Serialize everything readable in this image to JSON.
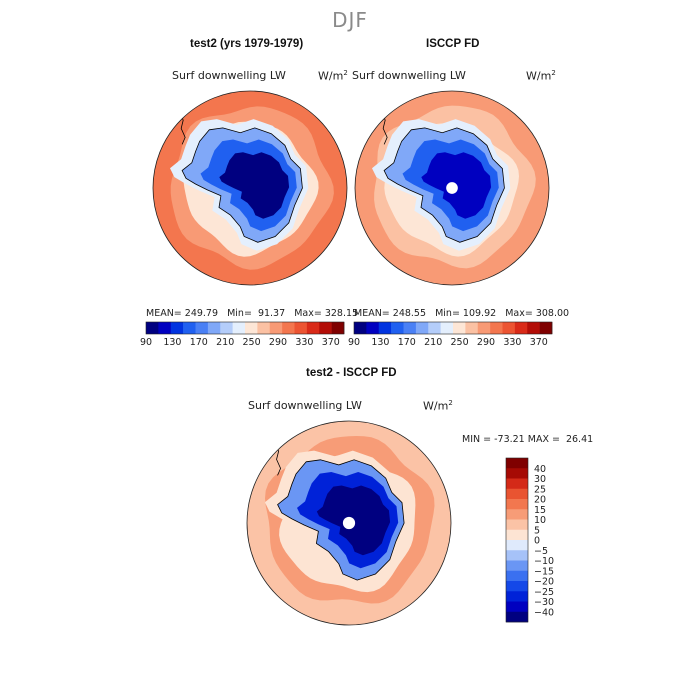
{
  "figure_title": "DJF",
  "chart_data": [
    {
      "type": "heatmap",
      "title": "test2 (yrs 1979-1979)",
      "variable": "Surf downwelling LW",
      "units": "W/m",
      "units_exp": "2",
      "projection": "south polar stereographic",
      "stats": {
        "mean": "249.79",
        "min": "91.37",
        "max": "328.15"
      },
      "stats_text": "MEAN= 249.79   Min=  91.37   Max= 328.15",
      "levels": [
        90,
        110,
        130,
        150,
        170,
        190,
        210,
        230,
        250,
        270,
        290,
        310,
        330,
        350,
        370,
        390
      ],
      "tick_labels": [
        "90",
        "130",
        "170",
        "210",
        "250",
        "290",
        "330",
        "370"
      ],
      "colors": [
        "#000080",
        "#0000c0",
        "#0033e0",
        "#2060f0",
        "#4a80f5",
        "#80a8f8",
        "#b4cdfa",
        "#e4effd",
        "#fde6d6",
        "#fbc1a3",
        "#f89a75",
        "#f3764e",
        "#ec5432",
        "#d92a18",
        "#b30d07",
        "#7f0000"
      ],
      "region_values": {
        "ocean_far": 322,
        "ocean_mid": 300,
        "ocean_ice": 268,
        "ice_shelf": 245,
        "coast": 205,
        "plateau_edge": 150,
        "plateau": 100
      }
    },
    {
      "type": "heatmap",
      "title": "ISCCP FD",
      "variable": "Surf downwelling LW",
      "units": "W/m",
      "units_exp": "2",
      "projection": "south polar stereographic",
      "stats": {
        "mean": "248.55",
        "min": "109.92",
        "max": "308.00"
      },
      "stats_text": "MEAN= 248.55   Min= 109.92   Max= 308.00",
      "levels": [
        90,
        110,
        130,
        150,
        170,
        190,
        210,
        230,
        250,
        270,
        290,
        310,
        330,
        350,
        370,
        390
      ],
      "tick_labels": [
        "90",
        "130",
        "170",
        "210",
        "250",
        "290",
        "330",
        "370"
      ],
      "colors": [
        "#000080",
        "#0000c0",
        "#0033e0",
        "#2060f0",
        "#4a80f5",
        "#80a8f8",
        "#b4cdfa",
        "#e4effd",
        "#fde6d6",
        "#fbc1a3",
        "#f89a75",
        "#f3764e",
        "#ec5432",
        "#d92a18",
        "#b30d07",
        "#7f0000"
      ],
      "region_values": {
        "ocean_far": 300,
        "ocean_mid": 280,
        "ocean_ice": 262,
        "ice_shelf": 235,
        "coast": 195,
        "plateau_edge": 150,
        "plateau": 115
      }
    },
    {
      "type": "heatmap",
      "title": "test2 - ISCCP FD",
      "variable": "Surf downwelling LW",
      "units": "W/m",
      "units_exp": "2",
      "projection": "south polar stereographic",
      "stats": {
        "min": "-73.21",
        "max": "26.41"
      },
      "stats_text": "MIN = -73.21 MAX =  26.41",
      "levels": [
        -45,
        -40,
        -30,
        -25,
        -20,
        -15,
        -10,
        -5,
        0,
        5,
        10,
        15,
        20,
        25,
        30,
        40,
        45
      ],
      "tick_labels": [
        "40",
        "30",
        "25",
        "20",
        "15",
        "10",
        "5",
        "0",
        "-5",
        "-10",
        "-15",
        "-20",
        "-25",
        "-30",
        "-40"
      ],
      "colors": [
        "#000080",
        "#0000c0",
        "#0022d8",
        "#1448e8",
        "#3a70f0",
        "#6a96f4",
        "#a6c2f8",
        "#dfeafc",
        "#fde4d3",
        "#fbc3a6",
        "#f79c77",
        "#f2774f",
        "#e95431",
        "#d42a18",
        "#a60a04",
        "#7f0000"
      ],
      "region_values": {
        "ocean_far": 8,
        "ocean_mid": 12,
        "ocean_ice": 3,
        "ice_shelf": 0,
        "coast": -12,
        "plateau_edge": -30,
        "plateau": -42
      }
    }
  ]
}
